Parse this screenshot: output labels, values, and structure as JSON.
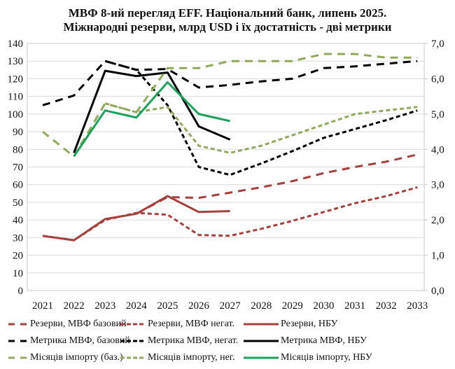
{
  "chart_data": {
    "type": "line",
    "title": "МВФ 8-ий перегляд EFF. Національний  банк, липень 2025.",
    "subtitle": "Міжнародні резерви, млрд USD і їх достатність  - дві метрики",
    "xlabel": "",
    "ylabel": "",
    "categories": [
      "2021",
      "2022",
      "2023",
      "2024",
      "2025",
      "2026",
      "2027",
      "2028",
      "2029",
      "2030",
      "2031",
      "2032",
      "2033"
    ],
    "y_left": {
      "range": [
        0,
        140
      ],
      "ticks": [
        "0",
        "10",
        "20",
        "30",
        "40",
        "50",
        "60",
        "70",
        "80",
        "90",
        "100",
        "110",
        "120",
        "130",
        "140"
      ]
    },
    "y_right": {
      "range": [
        0,
        7
      ],
      "ticks": [
        "0,0",
        "1,0",
        "2,0",
        "3,0",
        "4,0",
        "5,0",
        "6,0",
        "7,0"
      ]
    },
    "grid": true,
    "legend_position": "bottom",
    "series": [
      {
        "name": "Резерви, МВФ базовий",
        "axis": "left",
        "style": "long-dash",
        "color": "#a5403d",
        "values": [
          null,
          null,
          null,
          43.5,
          53,
          52.5,
          55.5,
          58.5,
          62,
          66.5,
          70,
          73,
          77
        ]
      },
      {
        "name": "Резерви, МВФ негат.",
        "axis": "left",
        "style": "short-dash",
        "color": "#a5403d",
        "values": [
          31,
          28.5,
          40,
          44,
          43,
          31.5,
          31,
          35,
          39.5,
          44.5,
          49.5,
          53.5,
          58.5
        ]
      },
      {
        "name": "Резерви, НБУ",
        "axis": "left",
        "style": "solid",
        "color": "#a5403d",
        "values": [
          31,
          28.5,
          40.5,
          43.5,
          53.5,
          44.5,
          45,
          null,
          null,
          null,
          null,
          null,
          null
        ]
      },
      {
        "name": "Метрика МВФ, базовий",
        "axis": "left",
        "style": "long-dash",
        "color": "#000000",
        "values": [
          105,
          110.5,
          130,
          125,
          125.5,
          115,
          116.5,
          118.5,
          120,
          126,
          127,
          128.5,
          130
        ]
      },
      {
        "name": "Метрика МВФ, негат.",
        "axis": "left",
        "style": "short-dash",
        "color": "#000000",
        "values": [
          null,
          null,
          130,
          125,
          105,
          70,
          65.5,
          72,
          79,
          86.5,
          91.5,
          96.5,
          102
        ]
      },
      {
        "name": "Метрика МВФ, НБУ",
        "axis": "left",
        "style": "solid",
        "color": "#000000",
        "values": [
          null,
          78,
          124.5,
          121.5,
          123.5,
          93,
          85.5,
          null,
          null,
          null,
          null,
          null,
          null
        ]
      },
      {
        "name": "Місяців імпорту (баз.)",
        "axis": "right",
        "style": "long-dash",
        "color": "#8faa5a",
        "values": [
          4.5,
          3.8,
          5.3,
          5.05,
          6.3,
          6.3,
          6.5,
          6.5,
          6.5,
          6.7,
          6.7,
          6.6,
          6.6
        ]
      },
      {
        "name": "Місяців імпорту, нег.",
        "axis": "right",
        "style": "short-dash",
        "color": "#8faa5a",
        "values": [
          null,
          null,
          5.3,
          5.05,
          5.2,
          4.1,
          3.9,
          4.1,
          4.4,
          4.7,
          5.0,
          5.1,
          5.2
        ]
      },
      {
        "name": "Місяців імпорту, НБУ",
        "axis": "right",
        "style": "solid",
        "color": "#1aa35a",
        "values": [
          null,
          3.8,
          5.1,
          4.9,
          5.9,
          5.0,
          4.8,
          null,
          null,
          null,
          null,
          null,
          null
        ]
      }
    ]
  }
}
